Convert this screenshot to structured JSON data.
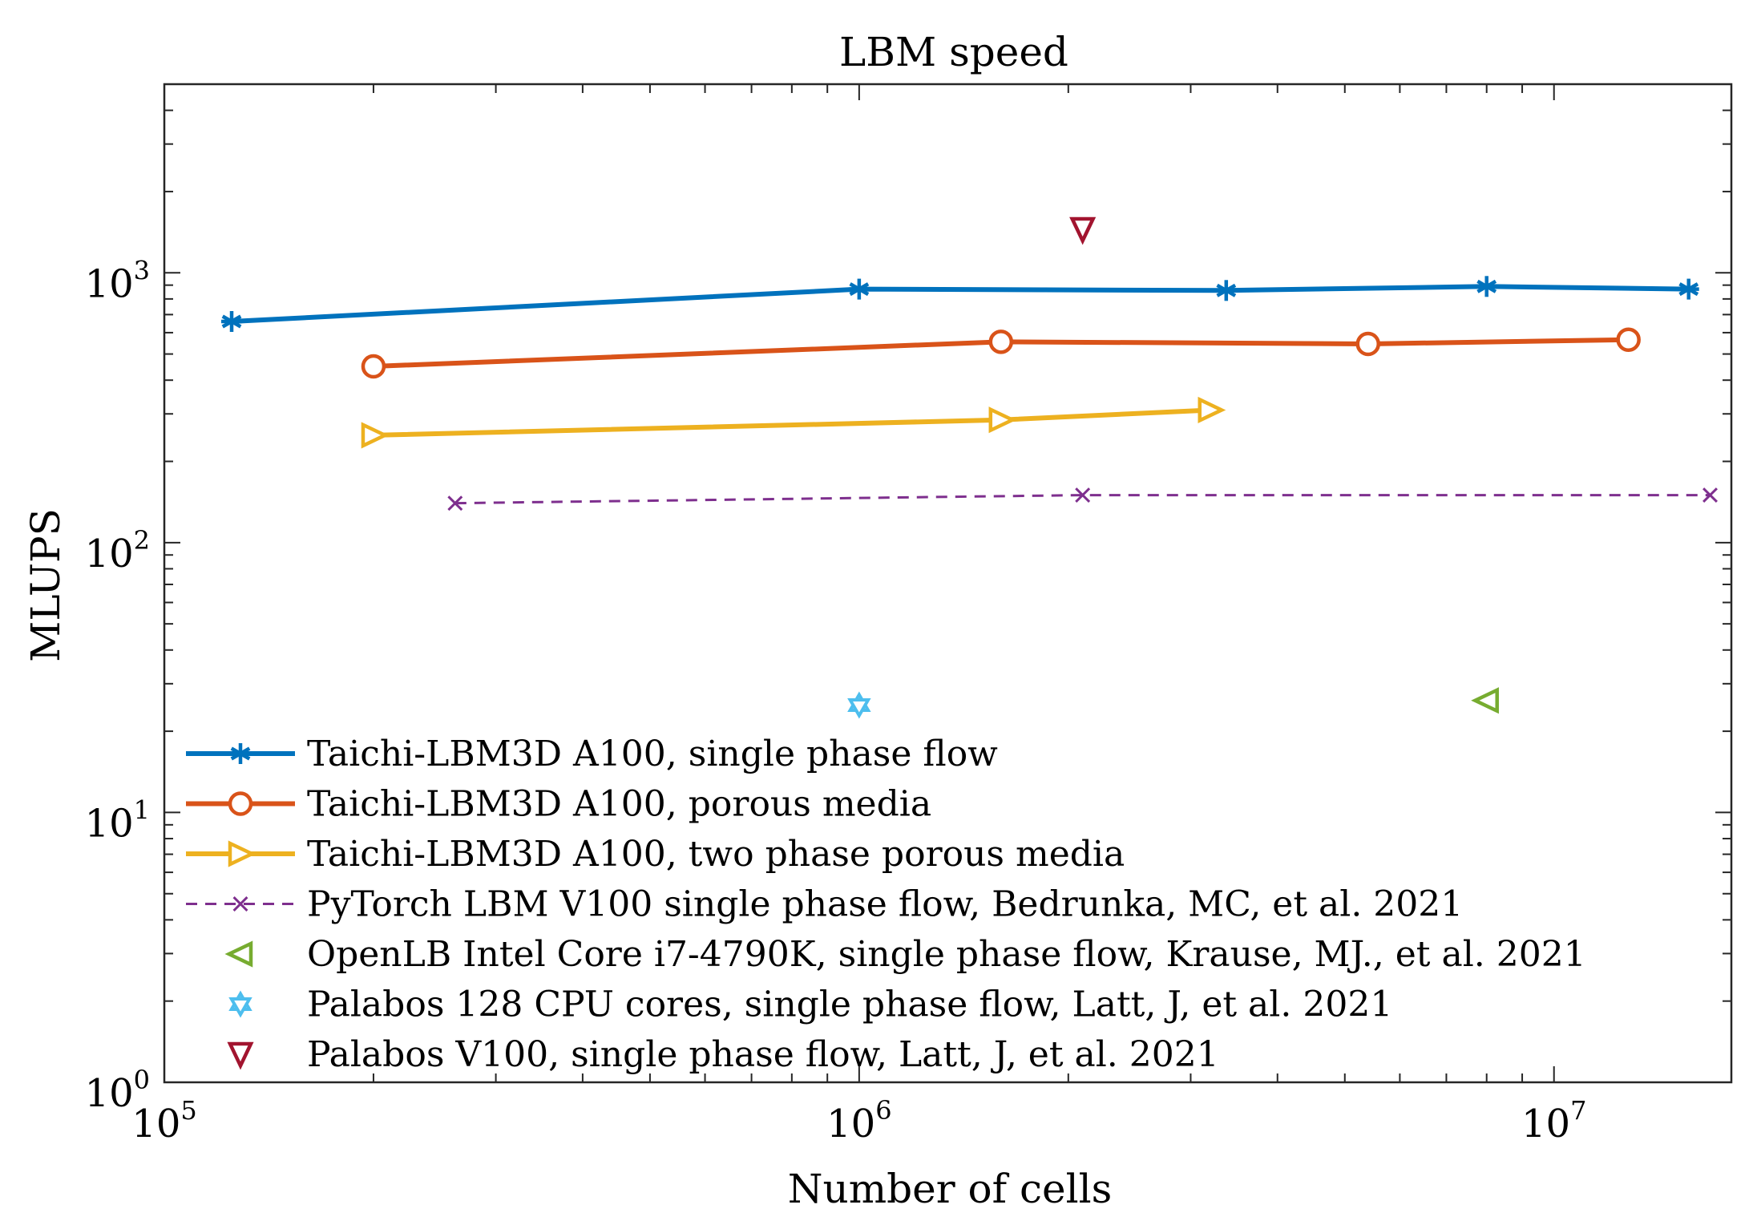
{
  "chart_data": {
    "type": "line",
    "title": "LBM speed",
    "xlabel": "Number of cells",
    "ylabel": "MLUPS",
    "xscale": "log",
    "yscale": "log",
    "xlim": [
      100000,
      18000000
    ],
    "ylim": [
      1,
      5000
    ],
    "grid": false,
    "legend_position": "bottom-left",
    "x_ticks": [
      {
        "base": "10",
        "exp": "5",
        "value": 100000
      },
      {
        "base": "10",
        "exp": "6",
        "value": 1000000
      },
      {
        "base": "10",
        "exp": "7",
        "value": 10000000
      }
    ],
    "y_ticks": [
      {
        "base": "10",
        "exp": "0",
        "value": 1
      },
      {
        "base": "10",
        "exp": "1",
        "value": 10
      },
      {
        "base": "10",
        "exp": "2",
        "value": 100
      },
      {
        "base": "10",
        "exp": "3",
        "value": 1000
      }
    ],
    "series": [
      {
        "name": "Taichi-LBM3D A100, single phase flow",
        "color": "#0072BD",
        "marker": "asterisk",
        "line": "solid",
        "x": [
          125000,
          1000000,
          3375000,
          8000000,
          15625000
        ],
        "y": [
          660,
          870,
          860,
          890,
          870
        ]
      },
      {
        "name": "Taichi-LBM3D A100, porous media",
        "color": "#D95319",
        "marker": "circle",
        "line": "solid",
        "x": [
          200000,
          1600000,
          5400000,
          12800000
        ],
        "y": [
          450,
          555,
          545,
          565
        ]
      },
      {
        "name": "Taichi-LBM3D A100, two phase porous media",
        "color": "#EDB120",
        "marker": "triangle-right",
        "line": "solid",
        "x": [
          200000,
          1600000,
          3200000
        ],
        "y": [
          250,
          285,
          310
        ]
      },
      {
        "name": "PyTorch LBM V100 single phase flow, Bedrunka, MC, et al. 2021",
        "color": "#7E2F8E",
        "marker": "x",
        "line": "dashed",
        "x": [
          262144,
          2097152,
          16777216
        ],
        "y": [
          140,
          150,
          150
        ]
      },
      {
        "name": "OpenLB Intel Core i7-4790K, single phase flow, Krause, MJ., et al. 2021",
        "color": "#77AC30",
        "marker": "triangle-left",
        "line": "none",
        "x": [
          8000000
        ],
        "y": [
          26
        ]
      },
      {
        "name": "Palabos 128 CPU cores, single phase flow, Latt, J, et al. 2021",
        "color": "#4DBEEE",
        "marker": "hexagram",
        "line": "none",
        "x": [
          1000000
        ],
        "y": [
          25
        ]
      },
      {
        "name": "Palabos V100, single phase flow, Latt, J, et al. 2021",
        "color": "#A2142F",
        "marker": "triangle-down",
        "line": "none",
        "x": [
          2097152
        ],
        "y": [
          1450
        ]
      }
    ]
  }
}
